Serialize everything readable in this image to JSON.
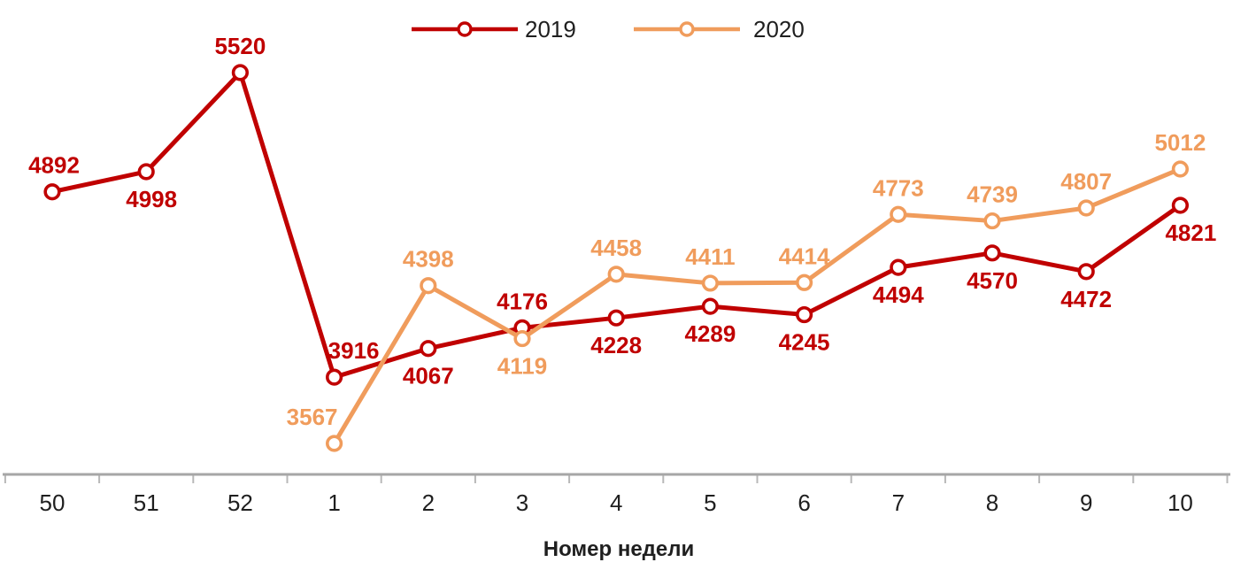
{
  "chart_data": {
    "type": "line",
    "title": "",
    "xlabel": "Номер недели",
    "ylabel": "",
    "categories": [
      "50",
      "51",
      "52",
      "1",
      "2",
      "3",
      "4",
      "5",
      "6",
      "7",
      "8",
      "9",
      "10"
    ],
    "series": [
      {
        "name": "2019",
        "color": "#C00000",
        "values": [
          4892,
          4998,
          5520,
          3916,
          4067,
          4176,
          4228,
          4289,
          4245,
          4494,
          4570,
          4472,
          4821
        ],
        "label_side": [
          "above",
          "below",
          "above",
          "above",
          "below",
          "above",
          "below",
          "below",
          "below",
          "below",
          "below",
          "below",
          "below"
        ],
        "label_dx": [
          2,
          6,
          0,
          22,
          0,
          0,
          0,
          0,
          0,
          0,
          0,
          0,
          12
        ]
      },
      {
        "name": "2020",
        "color": "#F09C5C",
        "values": [
          null,
          null,
          null,
          3567,
          4398,
          4119,
          4458,
          4411,
          4414,
          4773,
          4739,
          4807,
          5012
        ],
        "label_side": [
          null,
          null,
          null,
          "above",
          "above",
          "below",
          "above",
          "above",
          "above",
          "above",
          "above",
          "above",
          "above"
        ],
        "label_dx": [
          0,
          0,
          0,
          -25,
          0,
          0,
          0,
          0,
          0,
          0,
          0,
          0,
          0
        ]
      }
    ],
    "legend": {
      "position": "top-center",
      "entries": [
        "2019",
        "2020"
      ]
    },
    "grid": false,
    "marker": "open-circle",
    "ylim": [
      3400,
      5900
    ],
    "axis_color": "#A6A6A6",
    "tick_color": "#B8B8B8",
    "text_color": "#1f1f1f"
  }
}
